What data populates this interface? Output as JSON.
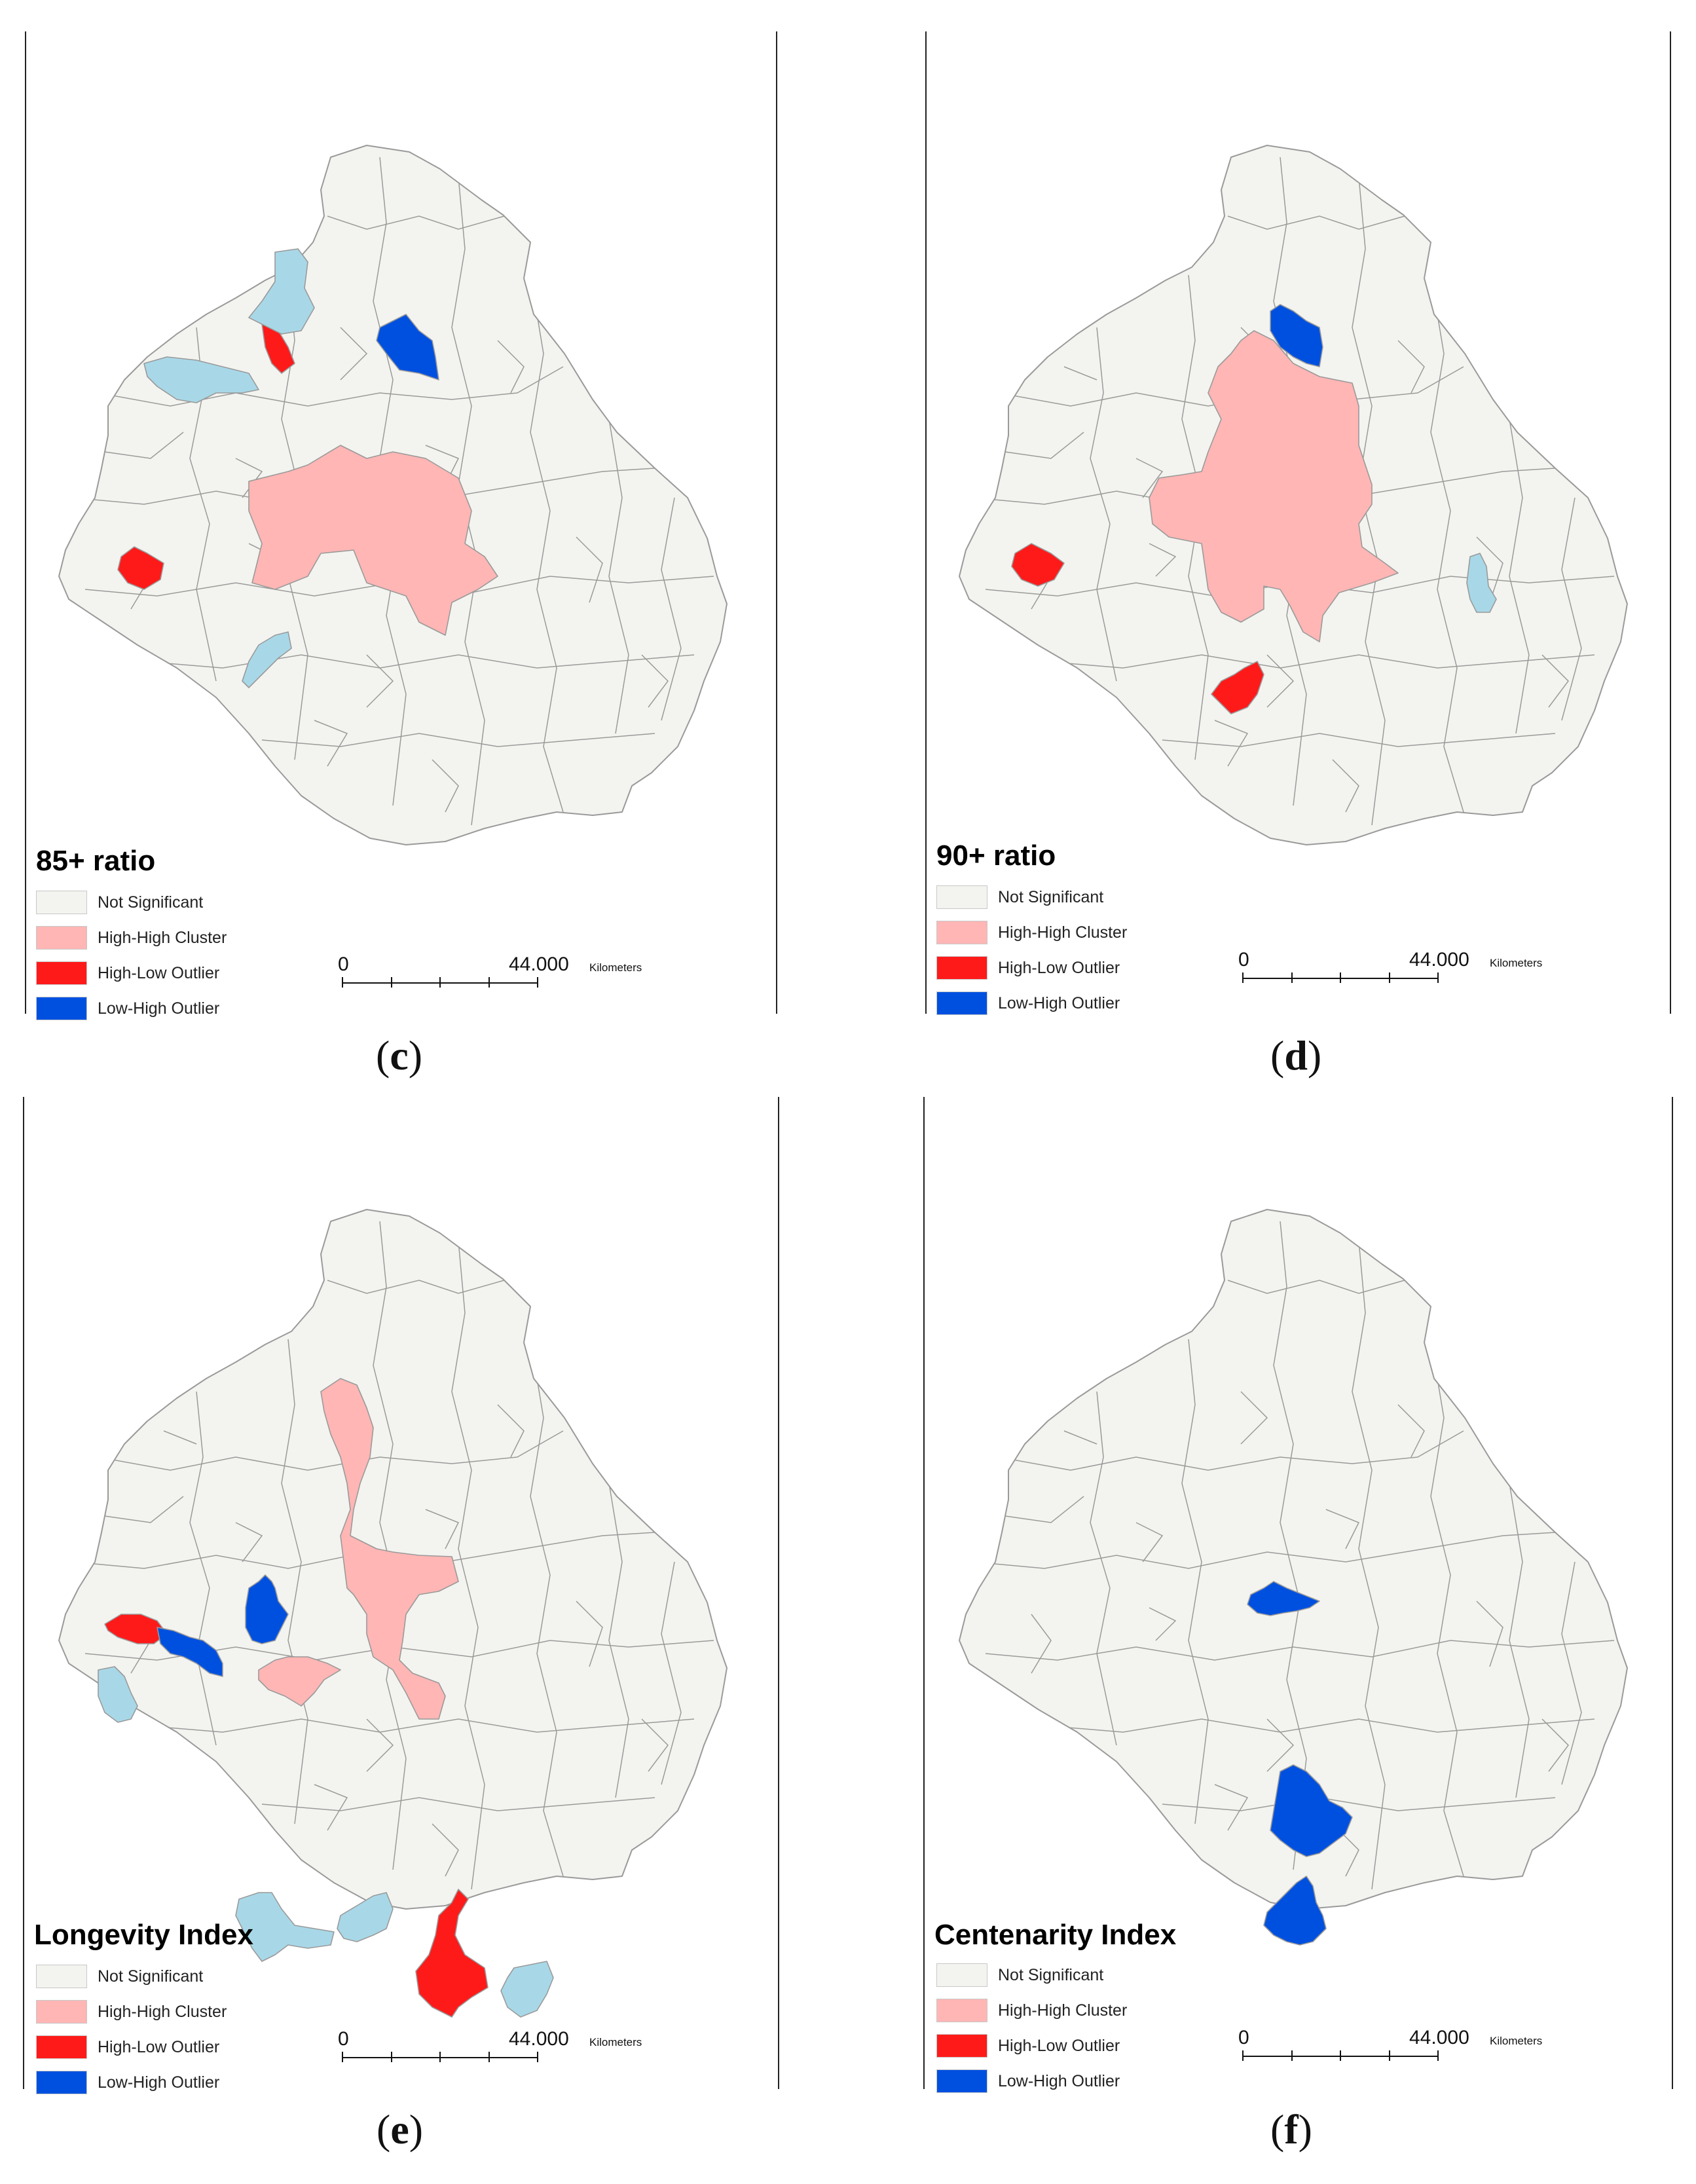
{
  "colors": {
    "not_significant": "#f3f3ef",
    "high_high": "#ffb6b4",
    "high_low": "#ff1a1a",
    "low_high": "#0050e0",
    "low_low": "#a8d8e8",
    "border": "#9a9a9a"
  },
  "legend_labels": {
    "not_significant": "Not Significant",
    "high_high": "High-High Cluster",
    "high_low": "High-Low Outlier",
    "low_high": "Low-High Outlier"
  },
  "scale": {
    "zero": "0",
    "distance": "44.000",
    "unit": "Kilometers"
  },
  "panels": {
    "c": {
      "letter": "c",
      "title": "85+ ratio"
    },
    "d": {
      "letter": "d",
      "title": "90+ ratio"
    },
    "e": {
      "letter": "e",
      "title": "Longevity Index"
    },
    "f": {
      "letter": "f",
      "title": "Centenarity Index"
    }
  }
}
